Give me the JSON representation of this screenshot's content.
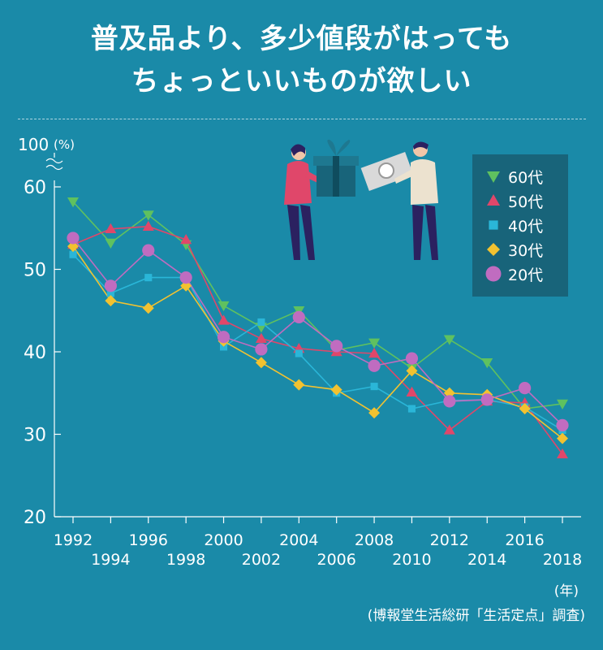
{
  "title_lines": [
    "普及品より、多少値段がはっても",
    "ちょっといいものが欲しい"
  ],
  "source": "(博報堂生活総研「生活定点」調査)",
  "x_unit": "(年)",
  "chart_data": {
    "type": "line",
    "title": "普及品より、多少値段がはっても ちょっといいものが欲しい",
    "xlabel": "(年)",
    "ylabel": "(%)",
    "x": [
      1992,
      1994,
      1996,
      1998,
      2000,
      2002,
      2004,
      2006,
      2008,
      2010,
      2012,
      2014,
      2016,
      2018
    ],
    "x_tick_labels": [
      "1992",
      "1994",
      "1996",
      "1998",
      "2000",
      "2002",
      "2004",
      "2006",
      "2008",
      "2010",
      "2012",
      "2014",
      "2016",
      "2018"
    ],
    "y_tick_labels": [
      "20",
      "30",
      "40",
      "50",
      "60"
    ],
    "y_top_label": "100",
    "y_unit_label": "(%)",
    "ylim": [
      20,
      60
    ],
    "axis_break": true,
    "legend_position": "top-right",
    "series": [
      {
        "name": "60代",
        "marker": "triangle-down",
        "color": "#5fc15f",
        "values": [
          58.2,
          53.2,
          56.6,
          53.0,
          45.6,
          43.0,
          45.0,
          40.2,
          41.1,
          38.0,
          41.5,
          38.7,
          33.1,
          33.7
        ]
      },
      {
        "name": "50代",
        "marker": "triangle-up",
        "color": "#e0476a",
        "values": [
          53.0,
          54.9,
          55.2,
          53.6,
          43.8,
          41.6,
          40.4,
          40.0,
          39.8,
          35.1,
          30.5,
          34.0,
          33.8,
          27.6
        ]
      },
      {
        "name": "40代",
        "marker": "square",
        "color": "#2ab6d8",
        "values": [
          51.8,
          47.1,
          49.0,
          49.0,
          40.6,
          43.6,
          39.8,
          35.0,
          35.8,
          33.1,
          34.1,
          34.2,
          33.3,
          30.5
        ]
      },
      {
        "name": "30代",
        "marker": "diamond",
        "color": "#f2c230",
        "values": [
          52.8,
          46.2,
          45.3,
          48.0,
          41.3,
          38.7,
          36.0,
          35.4,
          32.6,
          37.7,
          35.0,
          34.8,
          33.1,
          29.5
        ]
      },
      {
        "name": "20代",
        "marker": "circle",
        "color": "#c06cc0",
        "values": [
          53.8,
          48.0,
          52.3,
          49.0,
          41.8,
          40.3,
          44.2,
          40.7,
          38.3,
          39.2,
          34.0,
          34.2,
          35.6,
          31.1
        ]
      }
    ]
  }
}
